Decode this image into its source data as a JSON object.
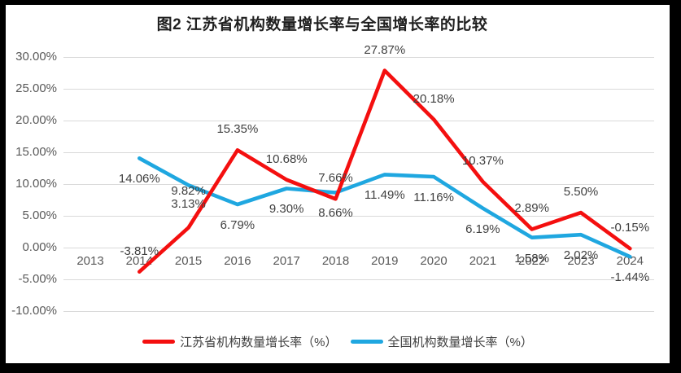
{
  "chart_data": {
    "type": "line",
    "title": "图2  江苏省机构数量增长率与全国增长率的比较",
    "xlabel": "",
    "ylabel": "",
    "ylim": [
      -10,
      30
    ],
    "grid": true,
    "legend_position": "bottom",
    "categories": [
      "2013",
      "2014",
      "2015",
      "2016",
      "2017",
      "2018",
      "2019",
      "2020",
      "2021",
      "2022",
      "2023",
      "2024"
    ],
    "y_ticks": [
      "30.00%",
      "25.00%",
      "20.00%",
      "15.00%",
      "10.00%",
      "5.00%",
      "0.00%",
      "-5.00%",
      "-10.00%"
    ],
    "y_tick_values": [
      30,
      25,
      20,
      15,
      10,
      5,
      0,
      -5,
      -10
    ],
    "series": [
      {
        "name": "江苏省机构数量增长率（%）",
        "color": "#f40f0f",
        "values": [
          null,
          -3.81,
          3.13,
          15.35,
          10.68,
          7.66,
          27.87,
          20.18,
          10.37,
          2.89,
          5.5,
          -0.15
        ],
        "labels": [
          null,
          "-3.81%",
          "3.13%",
          "15.35%",
          "10.68%",
          "7.66%",
          "27.87%",
          "20.18%",
          "10.37%",
          "2.89%",
          "5.50%",
          "-0.15%"
        ]
      },
      {
        "name": "全国机构数量增长率（%）",
        "color": "#1fa7e0",
        "values": [
          null,
          14.06,
          9.82,
          6.79,
          9.3,
          8.66,
          11.49,
          11.16,
          6.19,
          1.58,
          2.02,
          -1.44
        ],
        "labels": [
          null,
          "14.06%",
          "9.82%",
          "6.79%",
          "9.30%",
          "8.66%",
          "11.49%",
          "11.16%",
          "6.19%",
          "1.58%",
          "2.02%",
          "-1.44%"
        ]
      }
    ]
  }
}
